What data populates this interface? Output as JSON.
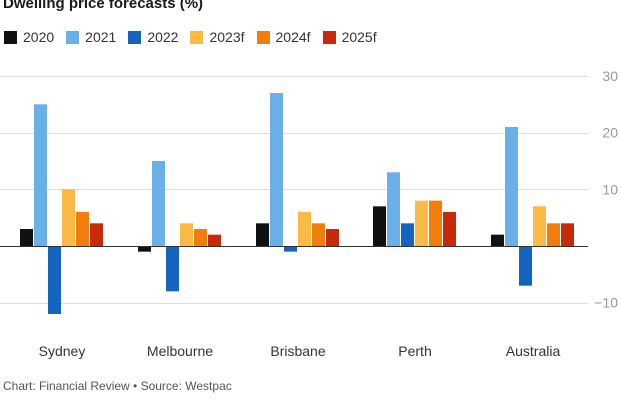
{
  "chart_data": {
    "type": "bar",
    "title": "Dwelling price forecasts (%)",
    "categories": [
      "Sydney",
      "Melbourne",
      "Brisbane",
      "Perth",
      "Australia"
    ],
    "series": [
      {
        "name": "2020",
        "color": "#111111",
        "values": [
          3,
          -1,
          4,
          7,
          2
        ]
      },
      {
        "name": "2021",
        "color": "#6ab0e8",
        "values": [
          25,
          15,
          27,
          13,
          21
        ]
      },
      {
        "name": "2022",
        "color": "#1565c0",
        "values": [
          -12,
          -8,
          -1,
          4,
          -7
        ]
      },
      {
        "name": "2023f",
        "color": "#fbb946",
        "values": [
          10,
          4,
          6,
          8,
          7
        ]
      },
      {
        "name": "2024f",
        "color": "#f07d0c",
        "values": [
          6,
          3,
          4,
          8,
          4
        ]
      },
      {
        "name": "2025f",
        "color": "#c62a0b",
        "values": [
          4,
          2,
          3,
          6,
          4
        ]
      }
    ],
    "yticks": [
      -10,
      10,
      20,
      30
    ],
    "ylim": [
      -13,
      30
    ],
    "grid": true,
    "y_axis_position": "right",
    "legend_position": "top-left",
    "xlabel": "",
    "ylabel": ""
  },
  "footer": "Chart: Financial Review • Source: Westpac"
}
